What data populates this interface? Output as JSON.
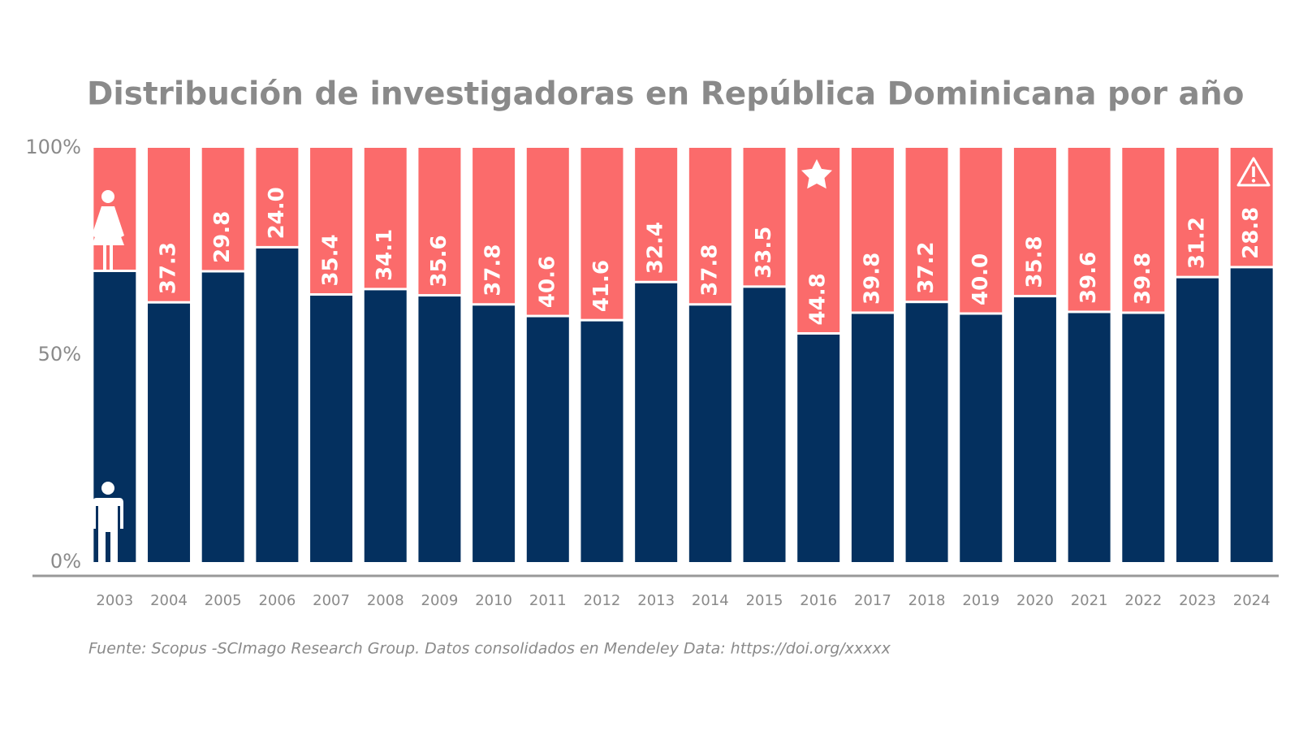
{
  "chart_data": {
    "type": "stacked_bar",
    "title": "Distribución de investigadoras en República Dominicana por año",
    "source": "Fuente: Scopus -SCImago Research Group. Datos consolidados en Mendeley Data: https://doi.org/xxxxx",
    "categories": [
      "2003",
      "2004",
      "2005",
      "2006",
      "2007",
      "2008",
      "2009",
      "2010",
      "2011",
      "2012",
      "2013",
      "2014",
      "2015",
      "2016",
      "2017",
      "2018",
      "2019",
      "2020",
      "2021",
      "2022",
      "2023",
      "2024"
    ],
    "series": [
      {
        "color": "#04305f",
        "values": [
          70.3,
          62.7,
          70.2,
          76.0,
          64.6,
          65.9,
          64.4,
          62.2,
          59.4,
          58.4,
          67.6,
          62.2,
          66.5,
          55.2,
          60.2,
          62.8,
          60.0,
          64.2,
          60.4,
          60.2,
          68.8,
          71.2
        ]
      },
      {
        "color": "#fb6b6b",
        "values": [
          29.7,
          37.3,
          29.8,
          24.0,
          35.4,
          34.1,
          35.6,
          37.8,
          40.6,
          41.6,
          32.4,
          37.8,
          33.5,
          44.8,
          39.8,
          37.2,
          40.0,
          35.8,
          39.6,
          39.8,
          31.2,
          28.8
        ],
        "value_labels": [
          null,
          "37.3",
          "29.8",
          "24.0",
          "35.4",
          "34.1",
          "35.6",
          "37.8",
          "40.6",
          "41.6",
          "32.4",
          "37.8",
          "33.5",
          "44.8",
          "39.8",
          "37.2",
          "40.0",
          "35.8",
          "39.6",
          "39.8",
          "31.2",
          "28.8"
        ]
      }
    ],
    "ylim": [
      0,
      100
    ],
    "yticks": [
      {
        "value": 0,
        "label": "0%"
      },
      {
        "value": 50,
        "label": "50%"
      },
      {
        "value": 100,
        "label": "100%"
      }
    ]
  }
}
